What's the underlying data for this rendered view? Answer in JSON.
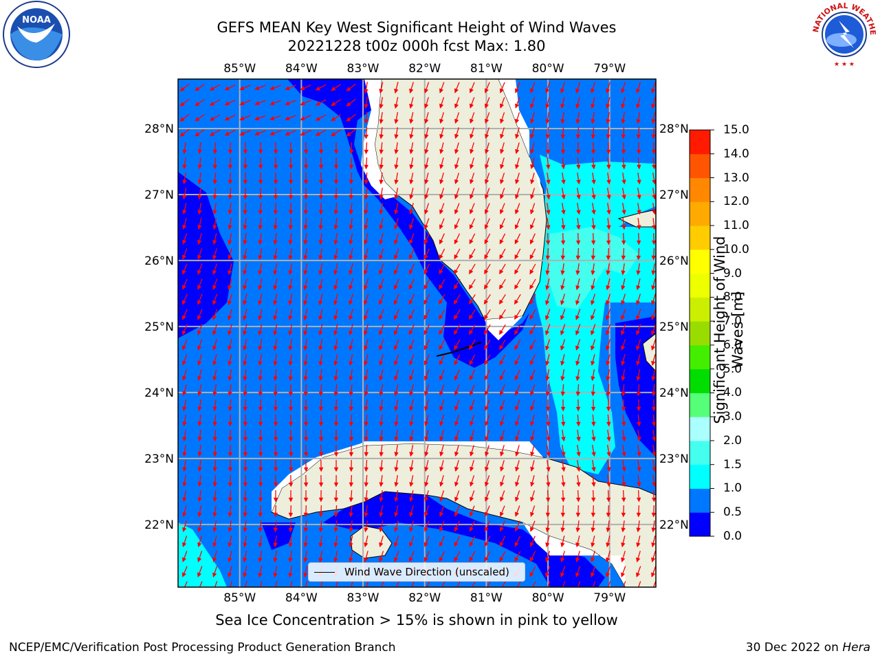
{
  "header": {
    "title_line1": "GEFS MEAN Key West Significant Height of Wind Waves",
    "title_line2": "20221228 t00z 000h fcst   Max: 1.80"
  },
  "logos": {
    "left": {
      "name": "noaa-logo",
      "text": "NOAA"
    },
    "right": {
      "name": "nws-logo",
      "text": "NATIONAL WEATHER SERVICE"
    }
  },
  "map": {
    "lon_labels": [
      "85°W",
      "84°W",
      "83°W",
      "82°W",
      "81°W",
      "80°W",
      "79°W"
    ],
    "lat_labels": [
      "28°N",
      "27°N",
      "26°N",
      "25°N",
      "24°N",
      "23°N",
      "22°N"
    ],
    "lon_range": [
      -86.0,
      -78.25
    ],
    "lat_range": [
      21.05,
      28.75
    ],
    "land_color": "#eeeedc",
    "arrow_color": "#ff0000",
    "grid_color": "#b0b0b0",
    "legend_label": "Wind Wave Direction (unscaled)"
  },
  "colorbar": {
    "label": "Significant Height of Wind Waves [m]",
    "tick_labels": [
      "0.0",
      "0.5",
      "1.0",
      "1.5",
      "2.0",
      "3.0",
      "4.0",
      "5.0",
      "6.0",
      "7.0",
      "8.0",
      "9.0",
      "10.0",
      "11.0",
      "12.0",
      "13.0",
      "14.0",
      "15.0"
    ],
    "colors": [
      "#0000ff",
      "#0077ff",
      "#00ffff",
      "#44ffee",
      "#aaffff",
      "#55ff77",
      "#00dd00",
      "#44ee00",
      "#99dd00",
      "#ccee00",
      "#eeff00",
      "#ffff00",
      "#ffcc00",
      "#ffaa00",
      "#ff8800",
      "#ff5500",
      "#ff1a00"
    ],
    "level_colors": {
      "0.0-0.5": "#0000ff",
      "0.5-1.0": "#0077ff",
      "1.0-1.5": "#00ffff",
      "1.5-2.0": "#44ffee"
    }
  },
  "footer": {
    "ice_note": "Sea Ice Concentration > 15% is shown in pink to yellow",
    "credit": "NCEP/EMC/Verification Post Processing Product Generation Branch",
    "date": "30 Dec 2022 on",
    "machine": "Hera"
  }
}
